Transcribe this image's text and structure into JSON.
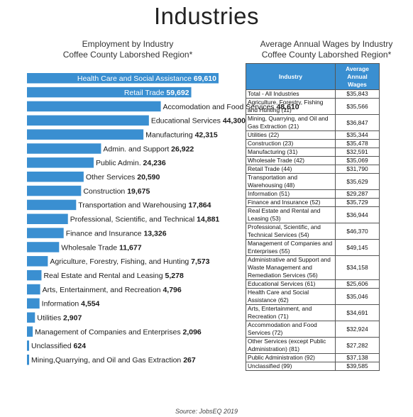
{
  "page": {
    "title": "Industries",
    "source": "Source: JobsEQ 2019"
  },
  "chart_data": {
    "type": "bar",
    "orientation": "horizontal",
    "title": "Employment by Industry",
    "subtitle": "Coffee County Laborshed Region*",
    "bar_color": "#3a8fd1",
    "categories": [
      "Health Care and Social Assistance",
      "Retail Trade",
      "Accomodation and Food Services",
      "Educational Services",
      "Manufacturing",
      "Admin. and Support",
      "Public Admin.",
      "Other Services",
      "Construction",
      "Transportation and Warehousing",
      "Professional, Scientific, and Technical",
      "Finance and Insurance",
      "Wholesale Trade",
      "Agriculture, Forestry, Fishing, and Hunting",
      "Real Estate and Rental and Leasing",
      "Arts, Entertainment, and Recreation",
      "Information",
      "Utilities",
      "Management of Companies and Enterprises",
      "Unclassified",
      "Mining,Quarrying, and Oil and Gas Extraction"
    ],
    "values": [
      69610,
      59692,
      48610,
      44300,
      42315,
      26922,
      24236,
      20590,
      19675,
      17864,
      14881,
      13326,
      11677,
      7573,
      5278,
      4796,
      4554,
      2907,
      2096,
      624,
      267
    ],
    "labels": [
      "69,610",
      "59,692",
      "48,610",
      "44,300",
      "42,315",
      "26,922",
      "24,236",
      "20,590",
      "19,675",
      "17,864",
      "14,881",
      "13,326",
      "11,677",
      "7,573",
      "5,278",
      "4,796",
      "4,554",
      "2,907",
      "2,096",
      "624",
      "267"
    ]
  },
  "wage_table": {
    "title": "Average Annual Wages by Industry",
    "subtitle": "Coffee County Laborshed Region*",
    "header_color": "#3a8fd1",
    "headers": [
      "Industry",
      "Average Annual Wages"
    ],
    "rows": [
      [
        "Total - All Industries",
        "$35,843"
      ],
      [
        "Agriculture, Forestry, Fishing and Hunting (11)",
        "$35,566"
      ],
      [
        "Mining, Quarrying, and Oil and Gas Extraction (21)",
        "$36,847"
      ],
      [
        "Utilities (22)",
        "$35,344"
      ],
      [
        "Construction (23)",
        "$35,478"
      ],
      [
        "Manufacturing (31)",
        "$32,591"
      ],
      [
        "Wholesale Trade (42)",
        "$35,069"
      ],
      [
        "Retail Trade (44)",
        "$31,790"
      ],
      [
        "Transportation and Warehousing (48)",
        "$35,629"
      ],
      [
        "Information (51)",
        "$29,287"
      ],
      [
        "Finance and Insurance (52)",
        "$35,729"
      ],
      [
        "Real Estate and Rental and Leasing (53)",
        "$36,944"
      ],
      [
        "Professional, Scientific, and Technical Services (54)",
        "$46,370"
      ],
      [
        "Management of Companies and Enterprises (55)",
        "$49,145"
      ],
      [
        "Administrative and Support and Waste Management and Remediation Services (56)",
        "$34,158"
      ],
      [
        "Educational Services (61)",
        "$25,606"
      ],
      [
        "Health Care and Social Assistance (62)",
        "$35,046"
      ],
      [
        "Arts, Entertainment, and Recreation (71)",
        "$34,691"
      ],
      [
        "Accommodation and Food Services (72)",
        "$32,924"
      ],
      [
        "Other Services (except Public Administration) (81)",
        "$27,282"
      ],
      [
        "Public Administration (92)",
        "$37,138"
      ],
      [
        "Unclassified (99)",
        "$39,585"
      ]
    ]
  }
}
